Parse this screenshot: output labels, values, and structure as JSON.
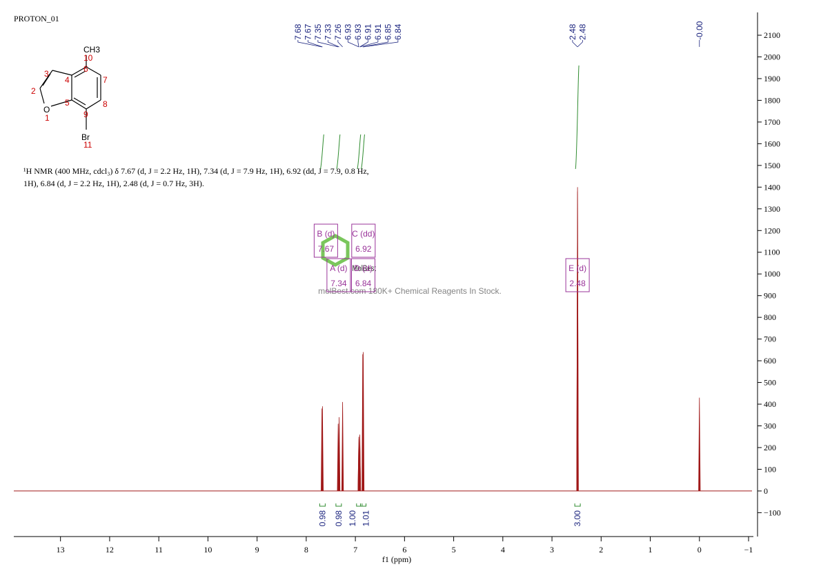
{
  "header": {
    "title": "PROTON_01"
  },
  "description": [
    "¹H NMR (400 MHz, cdcl₃) δ 7.67 (d, J = 2.2 Hz, 1H), 7.34 (d, J = 7.9 Hz, 1H), 6.92 (dd, J = 7.9, 0.8 Hz,",
    "1H), 6.84 (d, J = 2.2 Hz, 1H), 2.48 (d, J = 0.7 Hz, 3H)."
  ],
  "structure": {
    "atoms": [
      "CH3",
      "10",
      "3",
      "4",
      "6",
      "7",
      "2",
      "5",
      "8",
      "O",
      "1",
      "9",
      "Br",
      "11"
    ]
  },
  "watermark": {
    "brand": "MolBest",
    "tagline": "molBest.com 180K+ Chemical Reagents In Stock."
  },
  "chart_data": {
    "type": "nmr",
    "x_label": "f1 (ppm)",
    "color": "#a01818",
    "xlim": [
      13.95,
      -1.07
    ],
    "xticks": [
      13,
      12,
      11,
      10,
      9,
      8,
      7,
      6,
      5,
      4,
      3,
      2,
      1,
      0,
      {
        "value": -1,
        "label": "−1"
      }
    ],
    "ylim": [
      -210,
      2205
    ],
    "yticks": [
      {
        "value": -100,
        "label": "−100"
      },
      0,
      100,
      200,
      300,
      400,
      500,
      600,
      700,
      800,
      900,
      1000,
      1100,
      1200,
      1300,
      1400,
      1500,
      1600,
      1700,
      1800,
      1900,
      2000,
      2100
    ],
    "peaks": {
      "x": [
        7.68,
        7.67,
        7.35,
        7.33,
        7.26,
        6.93,
        6.93,
        6.91,
        6.91,
        6.85,
        6.84,
        2.48,
        2.48,
        0
      ],
      "values": [
        380,
        390,
        310,
        340,
        410,
        240,
        250,
        260,
        230,
        630,
        640,
        1400,
        1380,
        430
      ]
    },
    "peak_labels": [
      "7.68",
      "7.67",
      "7.35",
      "7.33",
      "7.26",
      "6.93",
      "6.93",
      "6.91",
      "6.91",
      "6.85",
      "6.84",
      "2.48",
      "2.48",
      "-0.00"
    ],
    "integrals": {
      "x": [
        7.67,
        7.34,
        6.92,
        6.84,
        2.48
      ],
      "values": [
        0.98,
        0.98,
        1.0,
        1.01,
        3.0
      ],
      "value_labels": [
        "0.98",
        "0.98",
        "1.00",
        "1.01",
        "3.00"
      ],
      "color": "#2e8b2e"
    },
    "multiplets": [
      {
        "name": "B (d)",
        "shift": 7.67
      },
      {
        "name": "C (dd)",
        "shift": 6.92
      },
      {
        "name": "A (d)",
        "shift": 7.34
      },
      {
        "name": "D (d)",
        "shift": 6.84
      },
      {
        "name": "E (d)",
        "shift": 2.48
      }
    ],
    "multiplet_color": "#993399",
    "label_color": "#1a237e"
  }
}
